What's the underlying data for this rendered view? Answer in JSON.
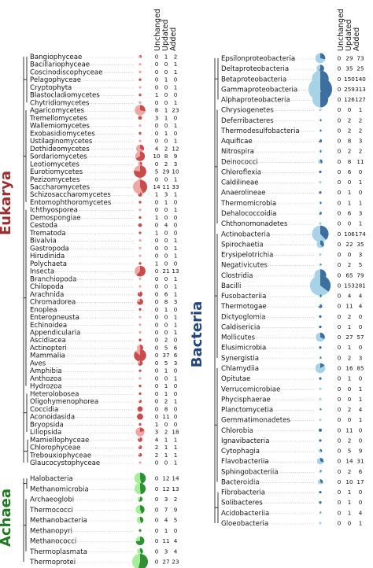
{
  "headers": {
    "unchanged": "Unchanged",
    "updated": "Updated",
    "added": "Added"
  },
  "colors": {
    "eukarya_dark": "#c94c4c",
    "eukarya_light": "#f1a5a5",
    "bacteria_dark": "#3c6e9f",
    "bacteria_light": "#a8d3e6",
    "achaea_dark": "#2f8f35",
    "achaea_light": "#a5ef98",
    "eukarya_text": "#9b2f2f",
    "bacteria_text": "#24467b",
    "achaea_text": "#1f7a22"
  },
  "domains": [
    {
      "key": "eukarya",
      "label": "Eukarya",
      "taxa": [
        {
          "name": "Bangiophyceae",
          "u": 0,
          "p": 1,
          "a": 2
        },
        {
          "name": "Bacillariophyceae",
          "u": 0,
          "p": 0,
          "a": 1
        },
        {
          "name": "Coscinodiscophyceae",
          "u": 0,
          "p": 0,
          "a": 1
        },
        {
          "name": "Pelagophyceae",
          "u": 0,
          "p": 1,
          "a": 0
        },
        {
          "name": "Cryptophyta",
          "u": 0,
          "p": 0,
          "a": 1
        },
        {
          "name": "Blastocladiomycetes",
          "u": 1,
          "p": 0,
          "a": 0
        },
        {
          "name": "Chytridiomycetes",
          "u": 0,
          "p": 0,
          "a": 1
        },
        {
          "name": "Agaricomycetes",
          "u": 8,
          "p": 1,
          "a": 23
        },
        {
          "name": "Tremellomycetes",
          "u": 3,
          "p": 1,
          "a": 0
        },
        {
          "name": "Wallemiomycetes",
          "u": 0,
          "p": 0,
          "a": 1
        },
        {
          "name": "Exobasidiomycetes",
          "u": 0,
          "p": 1,
          "a": 0
        },
        {
          "name": "Ustilaginomycetes",
          "u": 0,
          "p": 0,
          "a": 1
        },
        {
          "name": "Dothideomycetes",
          "u": 4,
          "p": 2,
          "a": 12
        },
        {
          "name": "Sordariomycetes",
          "u": 10,
          "p": 8,
          "a": 9
        },
        {
          "name": "Leotiomycetes",
          "u": 0,
          "p": 2,
          "a": 3
        },
        {
          "name": "Eurotiomycetes",
          "u": 5,
          "p": 29,
          "a": 10
        },
        {
          "name": "Pezizomycetes",
          "u": 0,
          "p": 0,
          "a": 1
        },
        {
          "name": "Saccharomycetes",
          "u": 14,
          "p": 11,
          "a": 33
        },
        {
          "name": "Schizosaccharomycetes",
          "u": 1,
          "p": 3,
          "a": 1
        },
        {
          "name": "Entomophthoromycetes",
          "u": 0,
          "p": 1,
          "a": 0
        },
        {
          "name": "Ichthyosporea",
          "u": 0,
          "p": 0,
          "a": 1
        },
        {
          "name": "Demospongiae",
          "u": 1,
          "p": 0,
          "a": 0
        },
        {
          "name": "Cestoda",
          "u": 0,
          "p": 4,
          "a": 0
        },
        {
          "name": "Trematoda",
          "u": 1,
          "p": 0,
          "a": 0
        },
        {
          "name": "Bivalvia",
          "u": 0,
          "p": 0,
          "a": 1
        },
        {
          "name": "Gastropoda",
          "u": 0,
          "p": 0,
          "a": 1
        },
        {
          "name": "Hirudinida",
          "u": 0,
          "p": 0,
          "a": 1
        },
        {
          "name": "Polychaeta",
          "u": 1,
          "p": 0,
          "a": 0
        },
        {
          "name": "Insecta",
          "u": 0,
          "p": 21,
          "a": 13
        },
        {
          "name": "Branchiopoda",
          "u": 0,
          "p": 0,
          "a": 1
        },
        {
          "name": "Chilopoda",
          "u": 0,
          "p": 0,
          "a": 1
        },
        {
          "name": "Arachnida",
          "u": 0,
          "p": 6,
          "a": 1
        },
        {
          "name": "Chromadorea",
          "u": 0,
          "p": 8,
          "a": 3
        },
        {
          "name": "Enoplea",
          "u": 0,
          "p": 1,
          "a": 0
        },
        {
          "name": "Enteropneusta",
          "u": 0,
          "p": 0,
          "a": 1
        },
        {
          "name": "Echinoidea",
          "u": 0,
          "p": 0,
          "a": 1
        },
        {
          "name": "Appendicularia",
          "u": 0,
          "p": 0,
          "a": 1
        },
        {
          "name": "Ascidiacea",
          "u": 0,
          "p": 2,
          "a": 0
        },
        {
          "name": "Actinopteri",
          "u": 0,
          "p": 5,
          "a": 6
        },
        {
          "name": "Mammalia",
          "u": 0,
          "p": 37,
          "a": 6
        },
        {
          "name": "Aves",
          "u": 0,
          "p": 5,
          "a": 3
        },
        {
          "name": "Amphibia",
          "u": 0,
          "p": 1,
          "a": 0
        },
        {
          "name": "Anthozoa",
          "u": 0,
          "p": 0,
          "a": 1
        },
        {
          "name": "Hydrozoa",
          "u": 0,
          "p": 1,
          "a": 0
        },
        {
          "name": "Heterolobosea",
          "u": 0,
          "p": 1,
          "a": 0
        },
        {
          "name": "Oligohymenophorea",
          "u": 0,
          "p": 2,
          "a": 1
        },
        {
          "name": "Coccidia",
          "u": 0,
          "p": 8,
          "a": 0
        },
        {
          "name": "Aconoidasida",
          "u": 0,
          "p": 11,
          "a": 0
        },
        {
          "name": "Bryopsida",
          "u": 1,
          "p": 0,
          "a": 0
        },
        {
          "name": "Liliopsida",
          "u": 3,
          "p": 2,
          "a": 18
        },
        {
          "name": "Mamiellophyceae",
          "u": 4,
          "p": 1,
          "a": 1
        },
        {
          "name": "Chlorophyceae",
          "u": 2,
          "p": 1,
          "a": 1
        },
        {
          "name": "Trebouxiophyceae",
          "u": 2,
          "p": 1,
          "a": 1
        },
        {
          "name": "Glaucocystophyceae",
          "u": 0,
          "p": 0,
          "a": 1
        }
      ]
    },
    {
      "key": "achaea",
      "label": "Achaea",
      "taxa": [
        {
          "name": "Halobacteria",
          "u": 0,
          "p": 12,
          "a": 14
        },
        {
          "name": "Methanomicrobia",
          "u": 0,
          "p": 12,
          "a": 13
        },
        {
          "name": "Archaeoglobi",
          "u": 0,
          "p": 3,
          "a": 2
        },
        {
          "name": "Thermococci",
          "u": 0,
          "p": 7,
          "a": 9
        },
        {
          "name": "Methanobacteria",
          "u": 0,
          "p": 4,
          "a": 5
        },
        {
          "name": "Methanopyri",
          "u": 0,
          "p": 1,
          "a": 0
        },
        {
          "name": "Methanococci",
          "u": 0,
          "p": 11,
          "a": 4
        },
        {
          "name": "Thermoplasmata",
          "u": 0,
          "p": 3,
          "a": 4
        },
        {
          "name": "Thermoprotei",
          "u": 0,
          "p": 27,
          "a": 23
        }
      ]
    },
    {
      "key": "bacteria",
      "label": "Bacteria",
      "taxa": [
        {
          "name": "Epsilonproteobacteria",
          "u": 0,
          "p": 29,
          "a": 73
        },
        {
          "name": "Deltaproteobacteria",
          "u": 0,
          "p": 35,
          "a": 25
        },
        {
          "name": "Betaproteobacteria",
          "u": 0,
          "p": 150,
          "a": 140
        },
        {
          "name": "Gammaproteobacteria",
          "u": 0,
          "p": 259,
          "a": 313
        },
        {
          "name": "Alphaproteobacteria",
          "u": 0,
          "p": 126,
          "a": 127
        },
        {
          "name": "Chrysiogenetes",
          "u": 0,
          "p": 0,
          "a": 1
        },
        {
          "name": "Deferribacteres",
          "u": 0,
          "p": 2,
          "a": 2
        },
        {
          "name": "Thermodesulfobacteria",
          "u": 0,
          "p": 2,
          "a": 2
        },
        {
          "name": "Aquificae",
          "u": 0,
          "p": 8,
          "a": 3
        },
        {
          "name": "Nitrospira",
          "u": 0,
          "p": 2,
          "a": 2
        },
        {
          "name": "Deinococci",
          "u": 0,
          "p": 8,
          "a": 11
        },
        {
          "name": "Chloroflexia",
          "u": 0,
          "p": 6,
          "a": 0
        },
        {
          "name": "Caldilineae",
          "u": 0,
          "p": 0,
          "a": 1
        },
        {
          "name": "Anaerolineae",
          "u": 0,
          "p": 1,
          "a": 0
        },
        {
          "name": "Thermomicrobia",
          "u": 0,
          "p": 1,
          "a": 1
        },
        {
          "name": "Dehalococcoidia",
          "u": 0,
          "p": 6,
          "a": 3
        },
        {
          "name": "Chthonomonadetes",
          "u": 0,
          "p": 0,
          "a": 1
        },
        {
          "name": "Actinobacteria",
          "u": 0,
          "p": 106,
          "a": 174
        },
        {
          "name": "Spirochaetia",
          "u": 0,
          "p": 22,
          "a": 35
        },
        {
          "name": "Erysipelotrichia",
          "u": 0,
          "p": 0,
          "a": 3
        },
        {
          "name": "Negativicutes",
          "u": 0,
          "p": 2,
          "a": 5
        },
        {
          "name": "Clostridia",
          "u": 0,
          "p": 65,
          "a": 79
        },
        {
          "name": "Bacilli",
          "u": 0,
          "p": 153,
          "a": 281
        },
        {
          "name": "Fusobacteriia",
          "u": 0,
          "p": 4,
          "a": 4
        },
        {
          "name": "Thermotogae",
          "u": 0,
          "p": 11,
          "a": 4
        },
        {
          "name": "Dictyoglomia",
          "u": 0,
          "p": 2,
          "a": 0
        },
        {
          "name": "Caldisericia",
          "u": 0,
          "p": 1,
          "a": 0
        },
        {
          "name": "Mollicutes",
          "u": 0,
          "p": 27,
          "a": 57
        },
        {
          "name": "Elusimicrobia",
          "u": 0,
          "p": 1,
          "a": 0
        },
        {
          "name": "Synergistia",
          "u": 0,
          "p": 2,
          "a": 3
        },
        {
          "name": "Chlamydiia",
          "u": 0,
          "p": 16,
          "a": 85
        },
        {
          "name": "Opitutae",
          "u": 0,
          "p": 1,
          "a": 0
        },
        {
          "name": "Verrucomicrobiae",
          "u": 0,
          "p": 0,
          "a": 1
        },
        {
          "name": "Phycisphaerae",
          "u": 0,
          "p": 0,
          "a": 1
        },
        {
          "name": "Planctomycetia",
          "u": 0,
          "p": 2,
          "a": 4
        },
        {
          "name": "Gemmatimonadetes",
          "u": 0,
          "p": 0,
          "a": 1
        },
        {
          "name": "Chlorobia",
          "u": 0,
          "p": 11,
          "a": 0
        },
        {
          "name": "Ignavibacteria",
          "u": 0,
          "p": 2,
          "a": 0
        },
        {
          "name": "Cytophagia",
          "u": 0,
          "p": 5,
          "a": 9
        },
        {
          "name": "Flavobacteriia",
          "u": 0,
          "p": 14,
          "a": 31
        },
        {
          "name": "Sphingobacteriia",
          "u": 0,
          "p": 2,
          "a": 6
        },
        {
          "name": "Bacteroidia",
          "u": 0,
          "p": 10,
          "a": 17
        },
        {
          "name": "Fibrobacteria",
          "u": 0,
          "p": 1,
          "a": 0
        },
        {
          "name": "Solibacteres",
          "u": 0,
          "p": 1,
          "a": 0
        },
        {
          "name": "Acidobacteriia",
          "u": 0,
          "p": 1,
          "a": 4
        },
        {
          "name": "Gloeobacteria",
          "u": 0,
          "p": 0,
          "a": 1
        }
      ]
    }
  ]
}
